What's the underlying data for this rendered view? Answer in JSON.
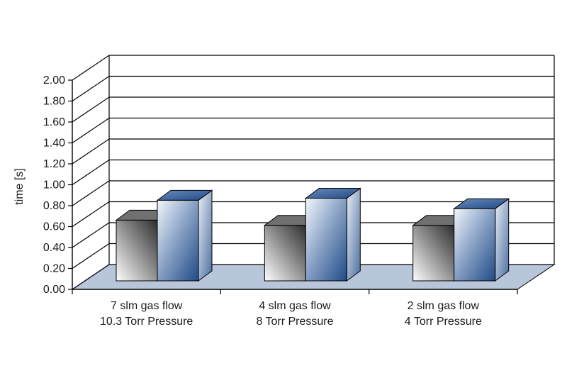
{
  "chart_data": {
    "type": "bar",
    "style": "3d-clustered-column",
    "ylabel": "time [s]",
    "xlabel": "",
    "title": "",
    "ylim": [
      0,
      2.0
    ],
    "yticks": [
      "0.00",
      "0.20",
      "0.40",
      "0.60",
      "0.80",
      "1.00",
      "1.20",
      "1.40",
      "1.60",
      "1.80",
      "2.00"
    ],
    "grid": true,
    "legend": "none",
    "categories": [
      [
        "7 slm gas flow",
        "10.3 Torr Pressure"
      ],
      [
        "4 slm gas flow",
        "8 Torr Pressure"
      ],
      [
        "2 slm gas flow",
        "4 Torr Pressure"
      ]
    ],
    "series": [
      {
        "values": [
          0.58,
          0.53,
          0.53
        ],
        "color": "#3a3a3a"
      },
      {
        "values": [
          0.77,
          0.79,
          0.69
        ],
        "color": "#2c5590"
      }
    ],
    "colors": {
      "floor": "#b8c6dc",
      "grid": "#000000"
    }
  }
}
